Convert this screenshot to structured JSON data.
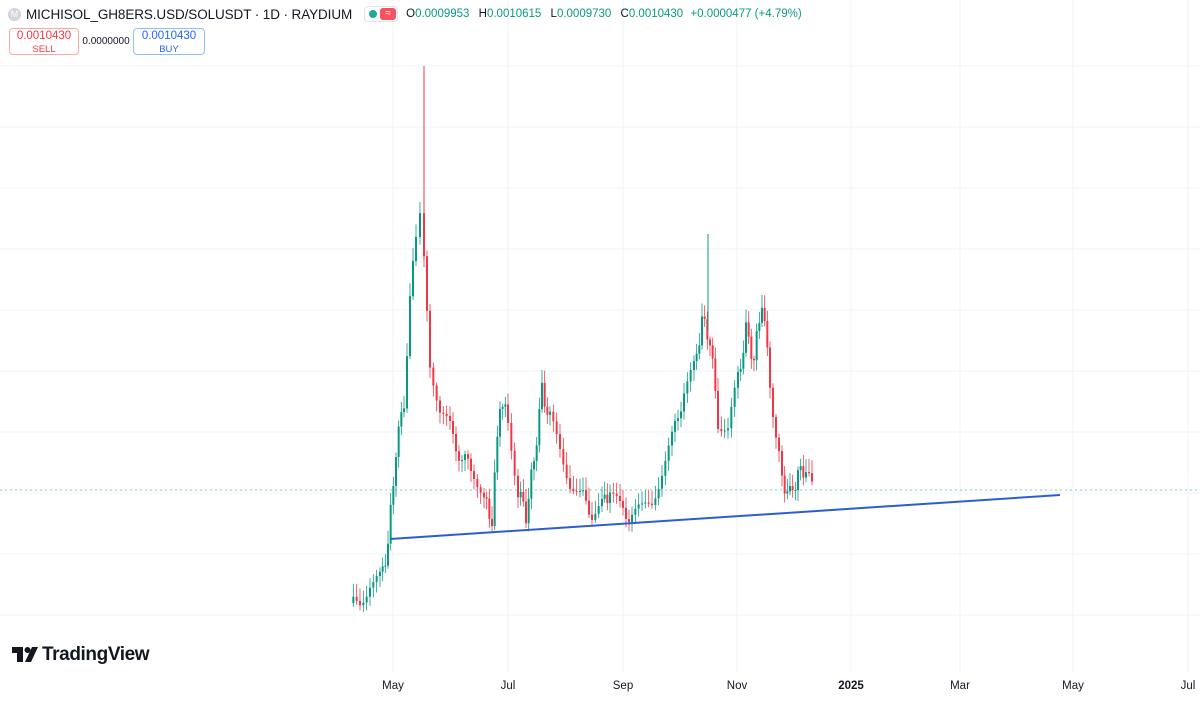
{
  "header": {
    "icon_letter": "M",
    "title": "MICHISOL_GH8ERS.USD/SOLUSDT · 1D · RAYDIUM",
    "badge_icon": "wave-icon",
    "ohlc": {
      "o_label": "O",
      "o": "0.0009953",
      "h_label": "H",
      "h": "0.0010615",
      "l_label": "L",
      "l": "0.0009730",
      "c_label": "C",
      "c": "0.0010430",
      "change": "+0.0000477 (+4.79%)"
    }
  },
  "trade": {
    "sell_price": "0.0010430",
    "sell_label": "SELL",
    "spread": "0.0000000",
    "buy_price": "0.0010430",
    "buy_label": "BUY"
  },
  "brand": {
    "name": "TradingView",
    "logo_icon": "tradingview-logo-icon"
  },
  "colors": {
    "up": "#089981",
    "down": "#f23645",
    "trendline": "#2e5cd6",
    "grid": "#f0f3fa",
    "price_line": "#089981",
    "text": "#131722"
  },
  "x_axis": [
    {
      "label": "May",
      "bold": false
    },
    {
      "label": "Jul",
      "bold": false
    },
    {
      "label": "Sep",
      "bold": false
    },
    {
      "label": "Nov",
      "bold": false
    },
    {
      "label": "2025",
      "bold": true
    },
    {
      "label": "Mar",
      "bold": false
    },
    {
      "label": "May",
      "bold": false
    },
    {
      "label": "Jul",
      "bold": false
    }
  ],
  "chart_data": {
    "type": "candlestick",
    "timeframe": "1D",
    "period": "2024-04 to 2024-12",
    "trendline": {
      "start": "2024-05-01",
      "end": "2025-04-30",
      "description": "rising support line"
    },
    "price_line": "0.0010430",
    "y_note": "price axis not shown",
    "candles_summary": [
      {
        "phase": "launch",
        "month": "2024-04",
        "level": "low"
      },
      {
        "phase": "spike",
        "month": "2024-05",
        "level": "peak"
      },
      {
        "phase": "consolidation",
        "month": "2024-06..2024-09",
        "level": "near support"
      },
      {
        "phase": "rally",
        "month": "2024-10..2024-11",
        "level": "second peak"
      },
      {
        "phase": "retrace",
        "month": "2024-12",
        "level": "near support"
      }
    ]
  }
}
